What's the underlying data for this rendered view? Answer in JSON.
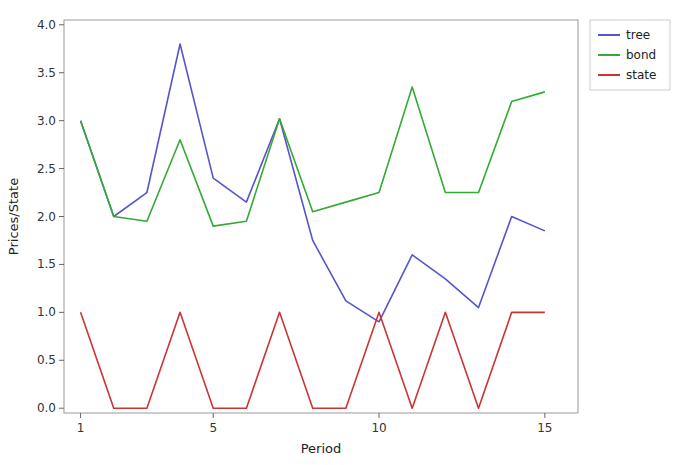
{
  "chart_data": {
    "type": "line",
    "xlabel": "Period",
    "ylabel": "Prices/State",
    "x": [
      1,
      2,
      3,
      4,
      5,
      6,
      7,
      8,
      9,
      10,
      11,
      12,
      13,
      14,
      15
    ],
    "series": [
      {
        "name": "tree",
        "color": "#5555cc",
        "values": [
          3.0,
          2.0,
          2.25,
          3.8,
          2.4,
          2.15,
          3.02,
          1.75,
          1.12,
          0.9,
          1.6,
          1.35,
          1.05,
          2.0,
          1.85
        ]
      },
      {
        "name": "bond",
        "color": "#33aa33",
        "values": [
          3.0,
          2.0,
          1.95,
          2.8,
          1.9,
          1.95,
          3.02,
          2.05,
          2.15,
          2.25,
          3.35,
          2.25,
          2.25,
          3.2,
          3.3
        ]
      },
      {
        "name": "state",
        "color": "#cc3333",
        "values": [
          1,
          0,
          0,
          1,
          0,
          0,
          1,
          0,
          0,
          1,
          0,
          1,
          0,
          1,
          1
        ]
      }
    ],
    "xlim": [
      0.5,
      16.0
    ],
    "ylim": [
      -0.05,
      4.05
    ],
    "xticks": [
      1,
      5,
      10,
      15
    ],
    "yticks": [
      {
        "value": 0,
        "label": "0.0"
      },
      0.5,
      {
        "value": 1,
        "label": "1.0"
      },
      1.5,
      {
        "value": 2,
        "label": "2.0"
      },
      2.5,
      {
        "value": 3,
        "label": "3.0"
      },
      3.5,
      {
        "value": 4,
        "label": "4.0"
      }
    ],
    "grid": false,
    "legend": "upper right"
  }
}
